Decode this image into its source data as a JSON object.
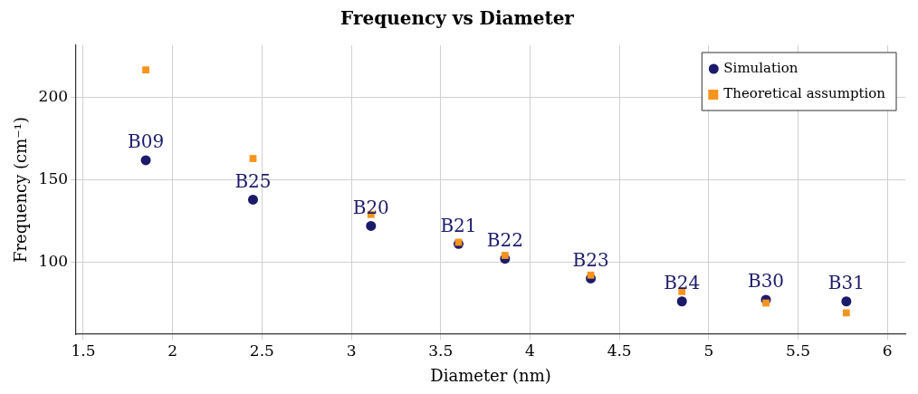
{
  "chart_data": {
    "type": "scatter",
    "title": "Frequency vs Diameter",
    "xlabel": "Diameter (nm)",
    "ylabel": "Frequency (cm⁻¹)",
    "series": [
      {
        "name": "Simulation",
        "color": "#1c1a6b",
        "marker": "circle",
        "x": [
          1.85,
          2.45,
          3.11,
          3.6,
          3.86,
          4.34,
          4.85,
          5.32,
          5.77
        ],
        "values": [
          162,
          138,
          122,
          111,
          102,
          90,
          76,
          77,
          76
        ]
      },
      {
        "name": "Theoretical assumption",
        "color": "#f7941d",
        "marker": "square",
        "x": [
          1.85,
          2.45,
          3.11,
          3.6,
          3.86,
          4.34,
          4.85,
          5.32,
          5.77
        ],
        "values": [
          217,
          163,
          129,
          112,
          104,
          92,
          82,
          75,
          69
        ]
      }
    ],
    "annotations": [
      {
        "text": "B09",
        "x": 1.85,
        "y": 162
      },
      {
        "text": "B25",
        "x": 2.45,
        "y": 138
      },
      {
        "text": "B20",
        "x": 3.11,
        "y": 122
      },
      {
        "text": "B21",
        "x": 3.6,
        "y": 111
      },
      {
        "text": "B22",
        "x": 3.86,
        "y": 102
      },
      {
        "text": "B23",
        "x": 4.34,
        "y": 90
      },
      {
        "text": "B24",
        "x": 4.85,
        "y": 76
      },
      {
        "text": "B30",
        "x": 5.32,
        "y": 77
      },
      {
        "text": "B31",
        "x": 5.77,
        "y": 76
      }
    ],
    "xlim": [
      1.46,
      6.1
    ],
    "xticks": [
      1.5,
      2,
      2.5,
      3,
      3.5,
      4,
      4.5,
      5,
      5.5,
      6
    ],
    "ylim": [
      56,
      232
    ],
    "yticks": [
      100,
      150,
      200
    ],
    "grid": true,
    "legend": "top right"
  }
}
